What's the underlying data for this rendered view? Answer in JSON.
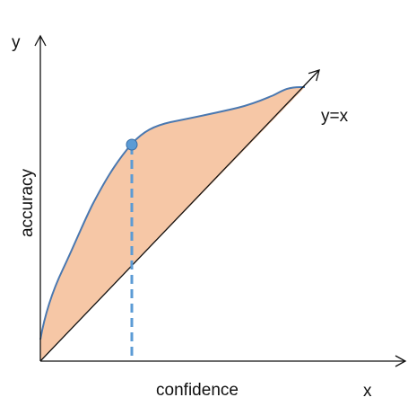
{
  "labels": {
    "y_axis": "y",
    "x_axis": "x",
    "y_axis_title": "accuracy",
    "x_axis_title": "confidence",
    "diagonal": "y=x"
  }
}
